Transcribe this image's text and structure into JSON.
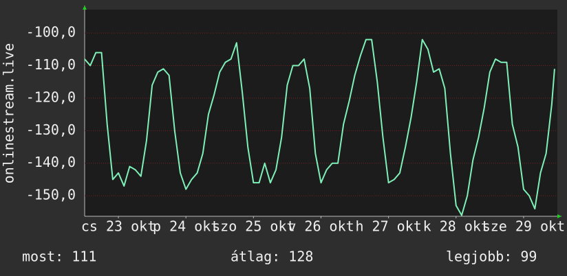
{
  "chart_data": {
    "type": "line",
    "ylabel": "onlinestream.live",
    "x": [
      0,
      2,
      4,
      6,
      8,
      10,
      12,
      14,
      16,
      18,
      20,
      22,
      24,
      26,
      28,
      30,
      32,
      34,
      36,
      38,
      40,
      42,
      44,
      46,
      48,
      50,
      52,
      54,
      56,
      58,
      60,
      62,
      64,
      66,
      68,
      70,
      72,
      74,
      76,
      78,
      80,
      82,
      84,
      86,
      88,
      90,
      92,
      94,
      96,
      98,
      100,
      102,
      104,
      106,
      108,
      110,
      112,
      114,
      116,
      118,
      120,
      122,
      124,
      126,
      128,
      130,
      132,
      134,
      136,
      138,
      140,
      142,
      144,
      146,
      148,
      150,
      152,
      154,
      156,
      158,
      160,
      162,
      164,
      166,
      167
    ],
    "series": [
      {
        "name": "onlinestream.live",
        "color": "#7ff0b8",
        "values": [
          -108,
          -110,
          -106,
          -106,
          -128,
          -145,
          -143,
          -147,
          -141,
          -142,
          -144,
          -133,
          -116,
          -112,
          -111,
          -113,
          -130,
          -143,
          -148,
          -145,
          -143,
          -137,
          -125,
          -119,
          -112,
          -109,
          -108,
          -103,
          -118,
          -135,
          -146,
          -146,
          -140,
          -146,
          -142,
          -132,
          -116,
          -110,
          -110,
          -108,
          -117,
          -137,
          -146,
          -142,
          -140,
          -140,
          -128,
          -121,
          -113,
          -107,
          -102,
          -102,
          -115,
          -132,
          -146,
          -145,
          -143,
          -135,
          -126,
          -115,
          -102,
          -105,
          -112,
          -111,
          -117,
          -137,
          -153,
          -156,
          -150,
          -139,
          -132,
          -123,
          -112,
          -108,
          -109,
          -109,
          -128,
          -135,
          -148,
          -150,
          -154,
          -143,
          -137,
          -122,
          -111
        ]
      }
    ],
    "xlim": [
      0,
      168
    ],
    "xticks": [
      {
        "value": 12,
        "label": "cs 23 okt"
      },
      {
        "value": 36,
        "label": "p 24 okt"
      },
      {
        "value": 60,
        "label": "szo 25 okt"
      },
      {
        "value": 84,
        "label": "v 26 okt"
      },
      {
        "value": 108,
        "label": "h 27 okt"
      },
      {
        "value": 132,
        "label": "k 28 okt"
      },
      {
        "value": 156,
        "label": "sze 29 okt"
      }
    ],
    "ylim": [
      -156.3,
      -92.8
    ],
    "yticks": [
      {
        "value": -100,
        "label": "-100,0"
      },
      {
        "value": -110,
        "label": "-110,0"
      },
      {
        "value": -120,
        "label": "-120,0"
      },
      {
        "value": -130,
        "label": "-130,0"
      },
      {
        "value": -140,
        "label": "-140,0"
      },
      {
        "value": -150,
        "label": "-150,0"
      }
    ],
    "grid": true,
    "stats": [
      "most: 111",
      "átlag: 128",
      "legjobb: 99"
    ]
  }
}
